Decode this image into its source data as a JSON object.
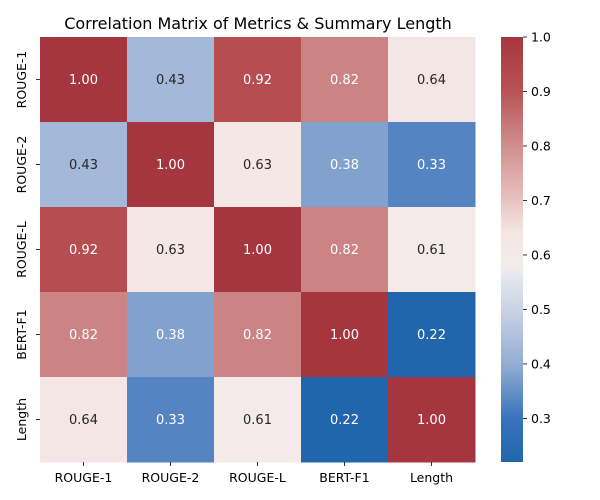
{
  "chart_data": {
    "type": "heatmap",
    "title": "Correlation Matrix of Metrics & Summary Length",
    "x_labels": [
      "ROUGE-1",
      "ROUGE-2",
      "ROUGE-L",
      "BERT-F1",
      "Length"
    ],
    "y_labels": [
      "ROUGE-1",
      "ROUGE-2",
      "ROUGE-L",
      "BERT-F1",
      "Length"
    ],
    "values": [
      [
        1.0,
        0.43,
        0.92,
        0.82,
        0.64
      ],
      [
        0.43,
        1.0,
        0.63,
        0.38,
        0.33
      ],
      [
        0.92,
        0.63,
        1.0,
        0.82,
        0.61
      ],
      [
        0.82,
        0.38,
        0.82,
        1.0,
        0.22
      ],
      [
        0.64,
        0.33,
        0.61,
        0.22,
        1.0
      ]
    ],
    "value_format": "0.00",
    "colormap": "diverging blue-white-red",
    "color_scale": {
      "min": 0.22,
      "max": 1.0,
      "stops": [
        {
          "value": 0.22,
          "color": "#2166ac"
        },
        {
          "value": 0.3,
          "color": "#3873bb"
        },
        {
          "value": 0.4,
          "color": "#94aed3"
        },
        {
          "value": 0.5,
          "color": "#c9d3e6"
        },
        {
          "value": 0.58,
          "color": "#f1eded"
        },
        {
          "value": 0.64,
          "color": "#f4e6e4"
        },
        {
          "value": 0.7,
          "color": "#e8c3c1"
        },
        {
          "value": 0.8,
          "color": "#d08f8f"
        },
        {
          "value": 0.9,
          "color": "#b95356"
        },
        {
          "value": 1.0,
          "color": "#a5363f"
        }
      ]
    },
    "colorbar": {
      "ticks": [
        0.3,
        0.4,
        0.5,
        0.6,
        0.7,
        0.8,
        0.9,
        1.0
      ],
      "tick_labels": [
        "0.3",
        "0.4",
        "0.5",
        "0.6",
        "0.7",
        "0.8",
        "0.9",
        "1.0"
      ]
    },
    "text_color_dark": "#262626",
    "text_color_light": "#ffffff"
  }
}
